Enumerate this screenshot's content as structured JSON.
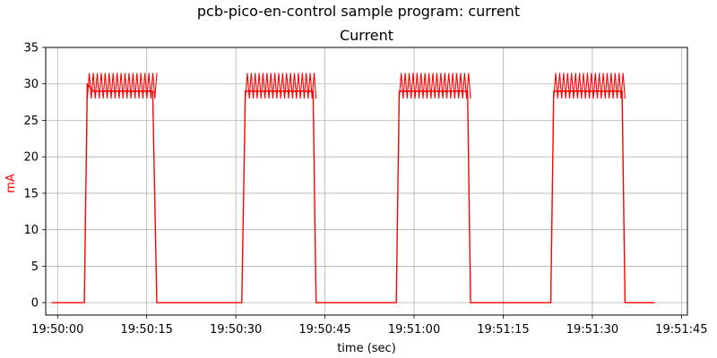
{
  "figure": {
    "suptitle": "pcb-pico-en-control sample program: current"
  },
  "chart_data": {
    "type": "line",
    "title": "Current",
    "xlabel": "time (sec)",
    "ylabel": "mA",
    "xlim": [
      "19:49:58",
      "19:51:46"
    ],
    "ylim": [
      -1.7,
      35
    ],
    "x_ticks": [
      "19:50:00",
      "19:50:15",
      "19:50:30",
      "19:50:45",
      "19:51:00",
      "19:51:15",
      "19:51:30",
      "19:51:45"
    ],
    "y_ticks": [
      0,
      5,
      10,
      15,
      20,
      25,
      30,
      35
    ],
    "grid": true,
    "line_color": "#ff0000",
    "ylabel_color": "#ff0000",
    "series": [
      {
        "x": [
          "19:49:59",
          "19:50:04.5",
          "19:50:05",
          "19:50:06",
          "19:50:16",
          "19:50:16.7",
          "19:50:17",
          "19:50:31",
          "19:50:31.6",
          "19:50:32",
          "19:50:33",
          "19:50:43",
          "19:50:43.5",
          "19:50:44",
          "19:50:57",
          "19:50:57.5",
          "19:50:58",
          "19:50:59",
          "19:51:09",
          "19:51:09.5",
          "19:51:10",
          "19:51:23",
          "19:51:23.5",
          "19:51:24",
          "19:51:25",
          "19:51:35",
          "19:51:35.5",
          "19:51:36",
          "19:51:40.5"
        ],
        "y": [
          0,
          0,
          30,
          29,
          29,
          0,
          0,
          0,
          29,
          29,
          29,
          29,
          0,
          0,
          0,
          29,
          29,
          29,
          29,
          0,
          0,
          0,
          29,
          29,
          29,
          29,
          0,
          0,
          0
        ]
      }
    ],
    "bursts": [
      {
        "start": "19:50:05",
        "end": "19:50:16.7",
        "low": 28,
        "high": 31.5
      },
      {
        "start": "19:50:31.6",
        "end": "19:50:43.5",
        "low": 28,
        "high": 31.5
      },
      {
        "start": "19:50:57.5",
        "end": "19:51:09.5",
        "low": 28,
        "high": 31.5
      },
      {
        "start": "19:51:23.5",
        "end": "19:51:35.5",
        "low": 28,
        "high": 31.5
      }
    ]
  }
}
